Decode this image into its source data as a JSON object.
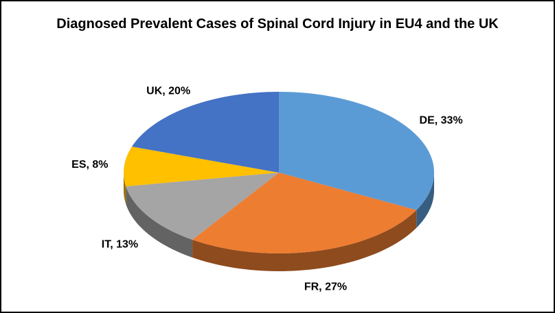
{
  "chart_data": {
    "type": "pie3d",
    "title": "Diagnosed Prevalent Cases of Spinal Cord Injury in EU4 and the UK",
    "values": [
      33,
      27,
      13,
      8,
      20
    ],
    "value_labels": [
      "DE, 33%",
      "FR, 27%",
      "IT, 13%",
      "ES, 8%",
      "UK, 20%"
    ],
    "colors": [
      "#5b9bd5",
      "#ed7d31",
      "#a5a5a5",
      "#ffc000",
      "#4472c4"
    ]
  }
}
